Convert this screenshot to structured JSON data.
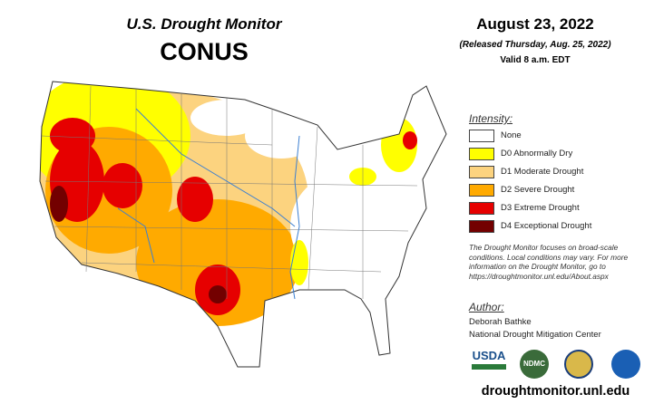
{
  "header": {
    "title": "U.S. Drought Monitor",
    "subtitle": "CONUS",
    "date": "August 23, 2022",
    "released": "(Released Thursday, Aug. 25, 2022)",
    "valid": "Valid 8 a.m. EDT"
  },
  "legend": {
    "title": "Intensity:",
    "items": [
      {
        "label": "None",
        "color": "#ffffff"
      },
      {
        "label": "D0 Abnormally Dry",
        "color": "#ffff00"
      },
      {
        "label": "D1 Moderate Drought",
        "color": "#fcd37f"
      },
      {
        "label": "D2 Severe Drought",
        "color": "#ffaa00"
      },
      {
        "label": "D3 Extreme Drought",
        "color": "#e60000"
      },
      {
        "label": "D4 Exceptional Drought",
        "color": "#730000"
      }
    ]
  },
  "note": "The Drought Monitor focuses on broad-scale conditions. Local conditions may vary. For more information on the Drought Monitor, go to https://droughtmonitor.unl.edu/About.aspx",
  "author": {
    "label": "Author:",
    "name": "Deborah Bathke",
    "organization": "National Drought Mitigation Center"
  },
  "logos": [
    "USDA",
    "NDMC"
  ],
  "url": "droughtmonitor.unl.edu"
}
